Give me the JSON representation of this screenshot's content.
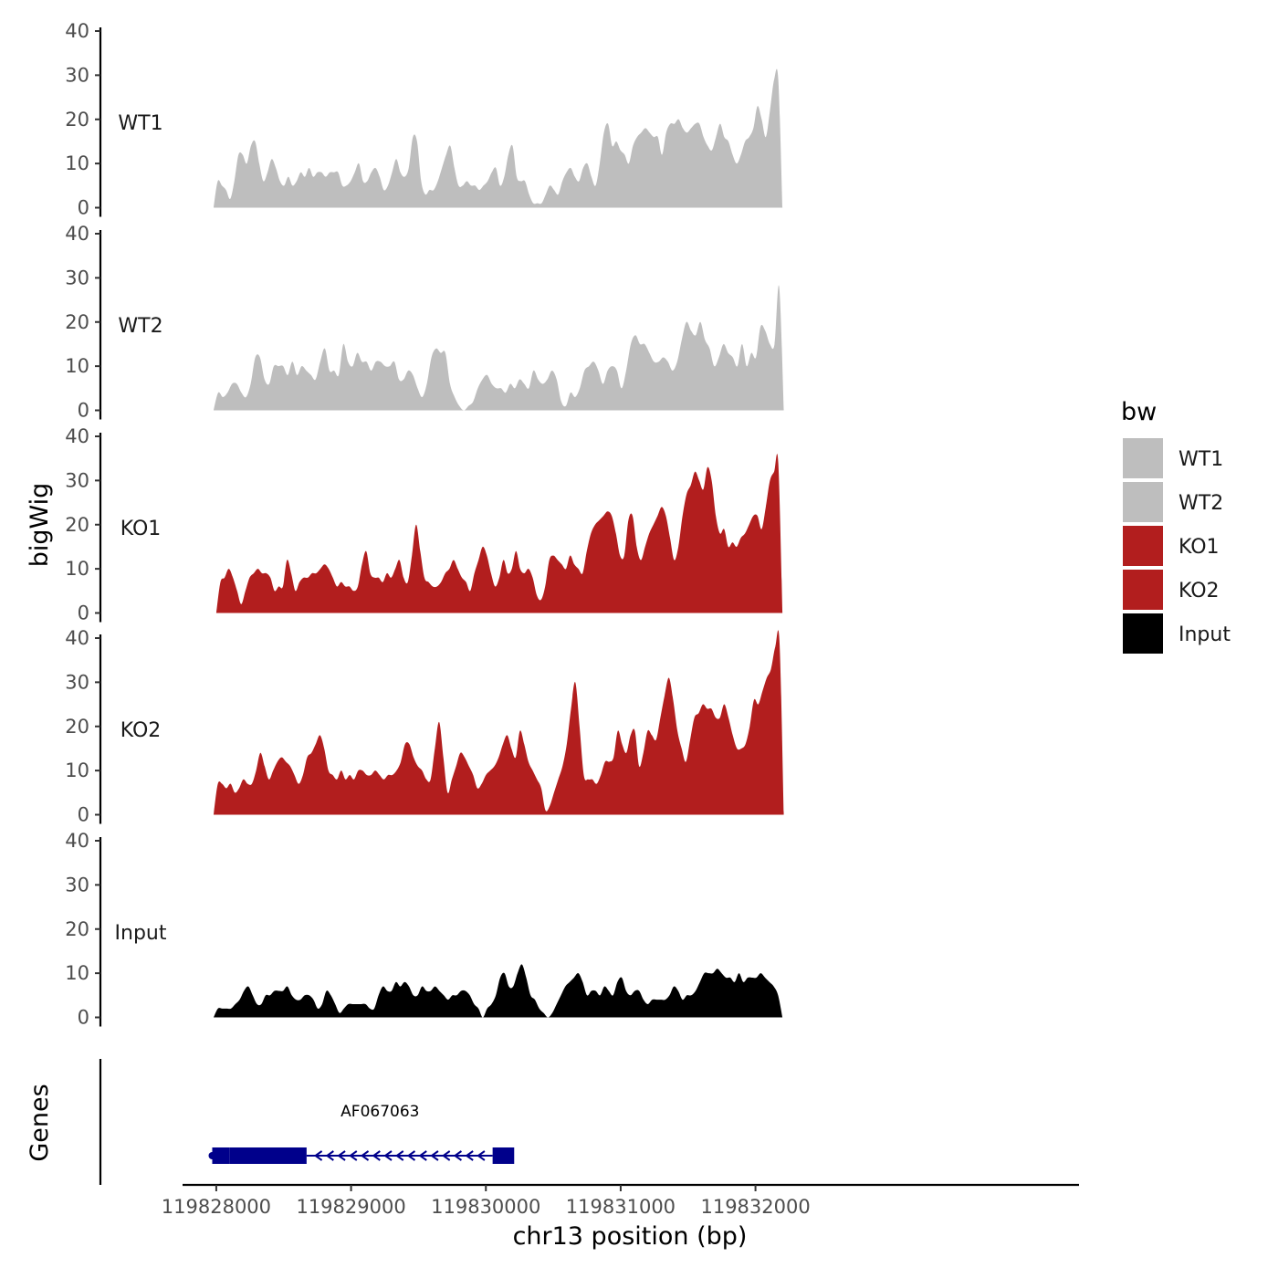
{
  "chart_data": {
    "type": "area",
    "chromosome": "chr13",
    "xlabel": "chr13 position (bp)",
    "ylabel": "bigWig",
    "gene_track_label": "Genes",
    "xlim": [
      119827750,
      119834400
    ],
    "x_ticks": [
      119828000,
      119829000,
      119830000,
      119831000,
      119832000
    ],
    "x_tick_labels": [
      "119828000",
      "119829000",
      "119830000",
      "119831000",
      "119832000"
    ],
    "ylim": [
      0,
      40
    ],
    "y_ticks": [
      0,
      10,
      20,
      30,
      40
    ],
    "y_tick_labels": [
      "0",
      "10",
      "20",
      "30",
      "40"
    ],
    "legend": {
      "title": "bw",
      "entries": [
        {
          "label": "WT1",
          "color": "#bebebe"
        },
        {
          "label": "WT2",
          "color": "#bebebe"
        },
        {
          "label": "KO1",
          "color": "#b21e1e"
        },
        {
          "label": "KO2",
          "color": "#b21e1e"
        },
        {
          "label": "Input",
          "color": "#000000"
        }
      ]
    },
    "series": [
      {
        "name": "WT1",
        "color": "#bebebe",
        "x_start": 119827980,
        "x_end": 119832200,
        "values": [
          0,
          6,
          5,
          4,
          2,
          6,
          12,
          12,
          10,
          14,
          15,
          10,
          6,
          8,
          11,
          9,
          6,
          5,
          7,
          5,
          6,
          8,
          7,
          9,
          7,
          8,
          8,
          7,
          8,
          8,
          8,
          5,
          5,
          6,
          8,
          10,
          6,
          6,
          8,
          9,
          7,
          4,
          5,
          8,
          11,
          8,
          7,
          9,
          16,
          15,
          6,
          3,
          4,
          4,
          6,
          9,
          12,
          14,
          9,
          5,
          5,
          6,
          5,
          5,
          4,
          5,
          6,
          8,
          9,
          5,
          7,
          12,
          14,
          7,
          6,
          6,
          3,
          1,
          1,
          1,
          3,
          5,
          4,
          3,
          6,
          8,
          9,
          7,
          6,
          9,
          10,
          7,
          5,
          10,
          17,
          19,
          14,
          15,
          13,
          12,
          10,
          14,
          16,
          17,
          18,
          17,
          16,
          16,
          12,
          17,
          19,
          19,
          20,
          18,
          17,
          18,
          19,
          19,
          16,
          14,
          13,
          16,
          19,
          16,
          15,
          12,
          10,
          12,
          15,
          16,
          18,
          23,
          20,
          16,
          22,
          29,
          29,
          0
        ]
      },
      {
        "name": "WT2",
        "color": "#bebebe",
        "x_start": 119827980,
        "x_end": 119832210,
        "values": [
          0,
          4,
          3,
          4,
          6,
          6,
          4,
          3,
          6,
          12,
          12,
          7,
          6,
          10,
          10,
          10,
          8,
          11,
          8,
          10,
          9,
          8,
          7,
          11,
          14,
          9,
          9,
          8,
          15,
          11,
          10,
          13,
          11,
          11,
          9,
          11,
          11,
          10,
          10,
          11,
          7,
          7,
          9,
          8,
          5,
          3,
          6,
          12,
          14,
          13,
          13,
          6,
          3,
          1,
          0,
          1,
          2,
          5,
          7,
          8,
          6,
          5,
          5,
          4,
          6,
          5,
          7,
          6,
          5,
          9,
          7,
          6,
          7,
          9,
          7,
          2,
          1,
          4,
          3,
          5,
          9,
          10,
          11,
          9,
          6,
          9,
          10,
          9,
          5,
          9,
          15,
          17,
          15,
          15,
          13,
          11,
          11,
          12,
          11,
          9,
          11,
          16,
          20,
          18,
          17,
          20,
          16,
          14,
          10,
          12,
          15,
          13,
          12,
          10,
          15,
          10,
          13,
          12,
          19,
          18,
          15,
          15,
          28,
          0
        ]
      },
      {
        "name": "KO1",
        "color": "#b21e1e",
        "x_start": 119828000,
        "x_end": 119832200,
        "values": [
          0,
          7,
          8,
          10,
          8,
          5,
          2,
          5,
          8,
          9,
          10,
          9,
          9,
          8,
          5,
          6,
          6,
          12,
          9,
          5,
          7,
          8,
          8,
          9,
          9,
          10,
          11,
          10,
          8,
          6,
          7,
          6,
          6,
          5,
          6,
          11,
          14,
          9,
          8,
          8,
          7,
          9,
          8,
          10,
          12,
          8,
          7,
          13,
          20,
          14,
          8,
          7,
          6,
          6,
          7,
          9,
          10,
          12,
          10,
          8,
          7,
          5,
          9,
          12,
          15,
          13,
          9,
          6,
          8,
          12,
          9,
          10,
          14,
          10,
          9,
          10,
          8,
          4,
          3,
          6,
          12,
          13,
          12,
          11,
          10,
          13,
          11,
          10,
          9,
          14,
          18,
          20,
          21,
          22,
          23,
          22,
          18,
          13,
          13,
          21,
          22,
          15,
          12,
          15,
          18,
          20,
          22,
          24,
          22,
          17,
          12,
          15,
          22,
          27,
          29,
          32,
          30,
          28,
          33,
          30,
          22,
          18,
          19,
          15,
          16,
          15,
          17,
          18,
          20,
          22,
          22,
          19,
          24,
          30,
          32,
          34,
          0
        ]
      },
      {
        "name": "KO2",
        "color": "#b21e1e",
        "x_start": 119827980,
        "x_end": 119832210,
        "values": [
          0,
          7,
          7,
          6,
          7,
          5,
          6,
          8,
          7,
          7,
          10,
          14,
          11,
          8,
          10,
          12,
          13,
          12,
          11,
          9,
          7,
          9,
          13,
          14,
          16,
          18,
          15,
          10,
          9,
          8,
          10,
          8,
          9,
          8,
          10,
          10,
          9,
          9,
          10,
          9,
          8,
          9,
          9,
          10,
          12,
          16,
          16,
          13,
          11,
          10,
          8,
          8,
          15,
          21,
          13,
          5,
          8,
          11,
          14,
          13,
          11,
          9,
          6,
          7,
          9,
          10,
          11,
          13,
          16,
          18,
          15,
          13,
          19,
          16,
          12,
          10,
          8,
          6,
          1,
          2,
          5,
          8,
          11,
          16,
          24,
          30,
          20,
          9,
          8,
          8,
          7,
          9,
          12,
          12,
          13,
          19,
          16,
          14,
          18,
          19,
          11,
          14,
          19,
          18,
          17,
          22,
          27,
          31,
          26,
          19,
          15,
          12,
          17,
          22,
          23,
          25,
          24,
          24,
          22,
          22,
          25,
          22,
          18,
          15,
          15,
          16,
          20,
          26,
          25,
          28,
          31,
          33,
          38,
          39,
          0
        ]
      },
      {
        "name": "Input",
        "color": "#000000",
        "x_start": 119827980,
        "x_end": 119832200,
        "values": [
          0,
          2,
          2,
          2,
          2,
          3,
          4,
          6,
          7,
          5,
          3,
          3,
          5,
          5,
          6,
          6,
          6,
          7,
          5,
          4,
          4,
          5,
          5,
          4,
          2,
          3,
          6,
          5,
          3,
          1,
          2,
          3,
          3,
          3,
          3,
          3,
          2,
          2,
          5,
          7,
          6,
          6,
          8,
          7,
          8,
          7,
          5,
          5,
          7,
          6,
          6,
          7,
          6,
          5,
          4,
          5,
          5,
          6,
          6,
          5,
          3,
          2,
          0,
          2,
          3,
          5,
          9,
          10,
          7,
          7,
          10,
          12,
          9,
          5,
          4,
          2,
          1,
          0,
          1,
          3,
          5,
          7,
          8,
          9,
          10,
          8,
          5,
          6,
          6,
          5,
          7,
          6,
          5,
          8,
          9,
          6,
          5,
          6,
          6,
          4,
          3,
          4,
          4,
          4,
          4,
          5,
          7,
          6,
          4,
          5,
          5,
          6,
          8,
          10,
          10,
          10,
          11,
          10,
          9,
          9,
          8,
          10,
          8,
          9,
          9,
          9,
          10,
          9,
          8,
          7,
          5,
          0
        ]
      }
    ],
    "genes": [
      {
        "name": "AF067063",
        "color": "#00008b",
        "strand": "-",
        "start": 119827970,
        "end": 119830210,
        "exons": [
          [
            119827970,
            119828100
          ],
          [
            119828100,
            119828670
          ],
          [
            119830050,
            119830210
          ]
        ],
        "intron": [
          119828670,
          119830050
        ]
      }
    ]
  }
}
